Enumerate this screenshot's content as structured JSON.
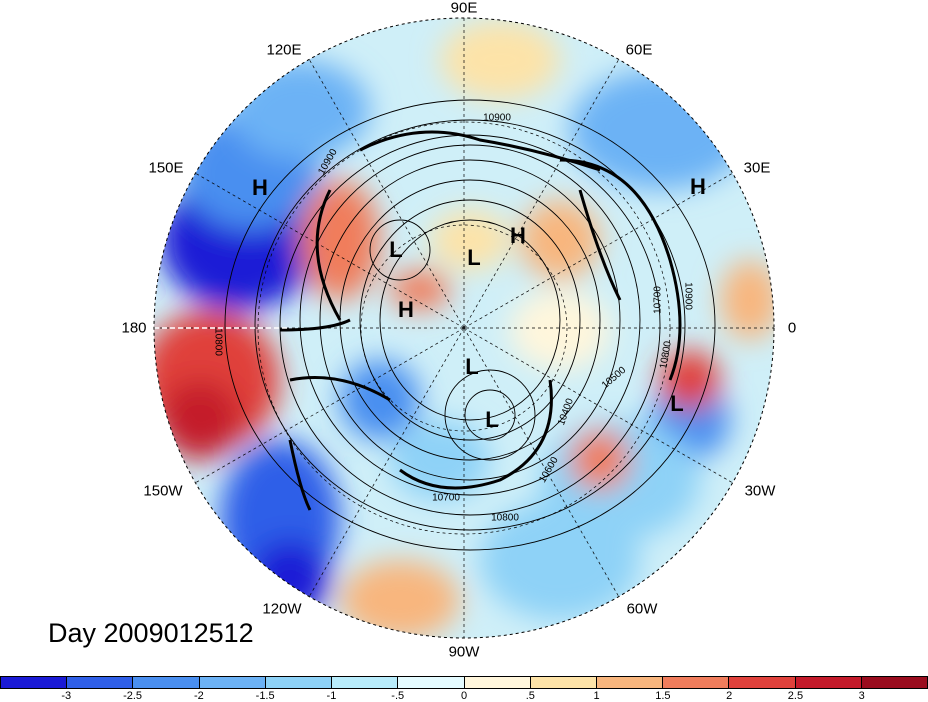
{
  "title": "Day 2009012512",
  "lon_labels": [
    {
      "text": "90E",
      "angle": 90
    },
    {
      "text": "60E",
      "angle": 60
    },
    {
      "text": "30E",
      "angle": 30
    },
    {
      "text": "0",
      "angle": 0
    },
    {
      "text": "30W",
      "angle": -30
    },
    {
      "text": "60W",
      "angle": -60
    },
    {
      "text": "90W",
      "angle": -90
    },
    {
      "text": "120W",
      "angle": -120
    },
    {
      "text": "150W",
      "angle": -150
    },
    {
      "text": "180",
      "angle": 180
    },
    {
      "text": "150E",
      "angle": 150
    },
    {
      "text": "120E",
      "angle": 120
    }
  ],
  "pressure_systems": [
    {
      "text": "H",
      "id": "h-pacific"
    },
    {
      "text": "H",
      "id": "h-europe"
    },
    {
      "text": "H",
      "id": "h-siberia"
    },
    {
      "text": "H",
      "id": "h-arctic"
    },
    {
      "text": "L",
      "id": "l-eastasia"
    },
    {
      "text": "L",
      "id": "l-pole"
    },
    {
      "text": "L",
      "id": "l-canada"
    },
    {
      "text": "L",
      "id": "l-hudson"
    },
    {
      "text": "L",
      "id": "l-atlantic"
    }
  ],
  "contour_labels": [
    "10900",
    "10900",
    "10700",
    "10900",
    "10800",
    "10400",
    "10600",
    "10700",
    "10800",
    "10500",
    "10800"
  ],
  "colorbar": {
    "ticks": [
      "-3",
      "-2.5",
      "-2",
      "-1.5",
      "-1",
      "-.5",
      "0",
      ".5",
      "1",
      "1.5",
      "2",
      "2.5",
      "3"
    ],
    "colors": [
      "#1a1ad6",
      "#2f5fe8",
      "#4a8ff0",
      "#6cb2f5",
      "#8ed2f7",
      "#b8ecfb",
      "#e4fbff",
      "#fff6dc",
      "#fde3a8",
      "#f8b67e",
      "#f07d5c",
      "#e0413b",
      "#c41a2a",
      "#9a0c1e"
    ]
  }
}
